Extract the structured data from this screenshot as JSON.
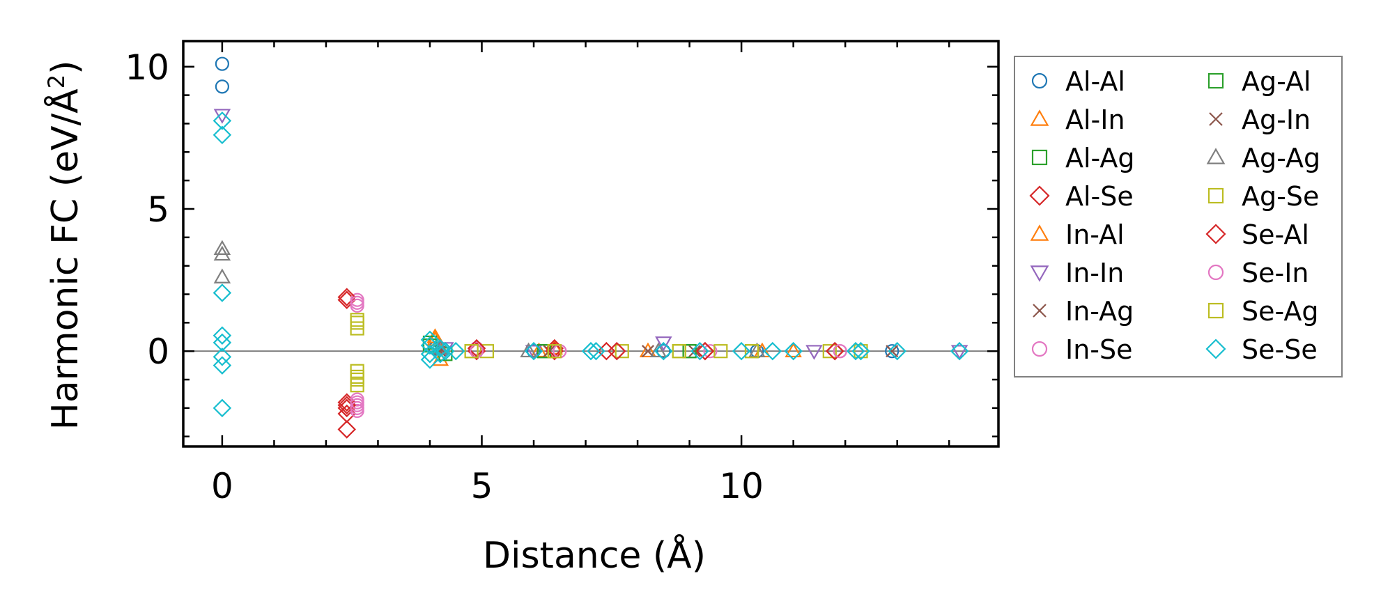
{
  "chart_data": {
    "type": "scatter",
    "title": "",
    "xlabel": "Distance (Å)",
    "ylabel": "Harmonic FC (eV/Å",
    "ylabel_sup": "2",
    "ylabel_close": ")",
    "xlim": [
      -0.75,
      14.95
    ],
    "ylim": [
      -3.35,
      10.9
    ],
    "xticks": [
      0,
      5,
      10
    ],
    "yticks": [
      0,
      5,
      10
    ],
    "grid": false,
    "zero_line": true,
    "legend_position": "outside-right",
    "series": [
      {
        "name": "Al-Al",
        "marker": "circle",
        "color": "#1f77b4",
        "points": [
          [
            0,
            10.1
          ],
          [
            0,
            9.3
          ],
          [
            4.1,
            0.1
          ],
          [
            6.0,
            0
          ],
          [
            8.5,
            0
          ],
          [
            10.3,
            0
          ],
          [
            12.9,
            0
          ]
        ]
      },
      {
        "name": "Al-In",
        "marker": "triangle-up",
        "color": "#ff7f0e",
        "points": [
          [
            4.1,
            0.5
          ],
          [
            4.2,
            -0.3
          ],
          [
            6.4,
            0.1
          ],
          [
            8.2,
            0
          ],
          [
            11.0,
            0
          ]
        ]
      },
      {
        "name": "Al-Ag",
        "marker": "square",
        "color": "#2ca02c",
        "points": [
          [
            4.0,
            0.2
          ],
          [
            4.3,
            -0.1
          ],
          [
            6.2,
            0
          ],
          [
            9.0,
            0
          ]
        ]
      },
      {
        "name": "Al-Se",
        "marker": "diamond",
        "color": "#d62728",
        "points": [
          [
            2.4,
            1.8
          ],
          [
            2.4,
            -1.8
          ],
          [
            2.4,
            -2.0
          ],
          [
            2.4,
            -2.2
          ],
          [
            2.4,
            -2.75
          ],
          [
            4.9,
            0
          ],
          [
            6.4,
            0
          ],
          [
            7.4,
            0
          ],
          [
            9.3,
            0
          ],
          [
            11.8,
            0
          ]
        ]
      },
      {
        "name": "In-Al",
        "marker": "triangle-up",
        "color": "#ff7f0e",
        "points": [
          [
            4.1,
            0.4
          ],
          [
            6.1,
            0
          ],
          [
            10.4,
            0
          ]
        ]
      },
      {
        "name": "In-In",
        "marker": "triangle-down",
        "color": "#9467bd",
        "points": [
          [
            0,
            8.3
          ],
          [
            4.3,
            0.1
          ],
          [
            6.0,
            0
          ],
          [
            8.5,
            0.3
          ],
          [
            11.4,
            0
          ],
          [
            14.2,
            0
          ]
        ]
      },
      {
        "name": "In-Ag",
        "marker": "x",
        "color": "#8c564b",
        "points": [
          [
            4.2,
            0
          ],
          [
            6.3,
            0
          ],
          [
            8.2,
            0
          ],
          [
            9.1,
            0
          ],
          [
            12.9,
            0
          ]
        ]
      },
      {
        "name": "In-Se",
        "marker": "circle",
        "color": "#e377c2",
        "points": [
          [
            2.6,
            1.8
          ],
          [
            2.6,
            1.6
          ],
          [
            2.6,
            -1.7
          ],
          [
            2.6,
            -1.9
          ],
          [
            2.6,
            -2.1
          ],
          [
            4.9,
            0.1
          ],
          [
            6.5,
            0
          ],
          [
            9.4,
            0
          ],
          [
            11.9,
            0
          ]
        ]
      },
      {
        "name": "Ag-Al",
        "marker": "square",
        "color": "#2ca02c",
        "points": [
          [
            4.0,
            0.3
          ],
          [
            6.2,
            0
          ],
          [
            9.0,
            0
          ]
        ]
      },
      {
        "name": "Ag-In",
        "marker": "x",
        "color": "#8c564b",
        "points": [
          [
            4.2,
            0.1
          ],
          [
            6.3,
            0
          ],
          [
            8.2,
            0
          ],
          [
            12.9,
            0
          ]
        ]
      },
      {
        "name": "Ag-Ag",
        "marker": "triangle-up",
        "color": "#7f7f7f",
        "points": [
          [
            0,
            3.6
          ],
          [
            0,
            3.4
          ],
          [
            0,
            2.6
          ],
          [
            4.2,
            0.1
          ],
          [
            5.9,
            0
          ],
          [
            8.4,
            0
          ],
          [
            10.3,
            0
          ]
        ]
      },
      {
        "name": "Ag-Se",
        "marker": "square",
        "color": "#bcbd22",
        "points": [
          [
            2.6,
            1.1
          ],
          [
            2.6,
            0.8
          ],
          [
            2.6,
            -0.7
          ],
          [
            2.6,
            -1.0
          ],
          [
            2.6,
            -1.2
          ],
          [
            4.8,
            0
          ],
          [
            5.1,
            0
          ],
          [
            6.4,
            0
          ],
          [
            7.7,
            0
          ],
          [
            8.8,
            0
          ],
          [
            9.6,
            0
          ],
          [
            10.2,
            0
          ],
          [
            11.7,
            0
          ],
          [
            12.3,
            0
          ]
        ]
      },
      {
        "name": "Se-Al",
        "marker": "diamond",
        "color": "#d62728",
        "points": [
          [
            2.4,
            1.9
          ],
          [
            2.4,
            -1.9
          ],
          [
            4.9,
            0.1
          ],
          [
            6.4,
            0.1
          ],
          [
            7.6,
            0
          ],
          [
            9.3,
            0
          ],
          [
            11.8,
            0
          ]
        ]
      },
      {
        "name": "Se-In",
        "marker": "circle",
        "color": "#e377c2",
        "points": [
          [
            2.6,
            1.7
          ],
          [
            2.6,
            -1.8
          ],
          [
            2.6,
            -2.0
          ],
          [
            4.9,
            0
          ],
          [
            6.5,
            0
          ],
          [
            11.9,
            0
          ]
        ]
      },
      {
        "name": "Se-Ag",
        "marker": "square",
        "color": "#bcbd22",
        "points": [
          [
            2.6,
            1.0
          ],
          [
            2.6,
            -0.9
          ],
          [
            4.8,
            0
          ],
          [
            6.4,
            0
          ],
          [
            8.8,
            0
          ],
          [
            10.2,
            0
          ]
        ]
      },
      {
        "name": "Se-Se",
        "marker": "diamond",
        "color": "#17becf",
        "points": [
          [
            0,
            8.1
          ],
          [
            0,
            7.6
          ],
          [
            0,
            2.05
          ],
          [
            0,
            0.55
          ],
          [
            0,
            0.3
          ],
          [
            0,
            -0.2
          ],
          [
            0,
            -0.5
          ],
          [
            0,
            -2.0
          ],
          [
            4.0,
            0.4
          ],
          [
            4.0,
            0.2
          ],
          [
            4.0,
            -0.1
          ],
          [
            4.0,
            -0.3
          ],
          [
            4.2,
            0.1
          ],
          [
            4.2,
            -0.1
          ],
          [
            4.3,
            0
          ],
          [
            4.5,
            0
          ],
          [
            6.0,
            0
          ],
          [
            7.1,
            0
          ],
          [
            7.2,
            0
          ],
          [
            8.5,
            0
          ],
          [
            9.2,
            0
          ],
          [
            10.0,
            0
          ],
          [
            10.6,
            0
          ],
          [
            11.0,
            0
          ],
          [
            12.2,
            0
          ],
          [
            12.3,
            0
          ],
          [
            13.0,
            0
          ],
          [
            14.2,
            0
          ]
        ]
      }
    ]
  }
}
